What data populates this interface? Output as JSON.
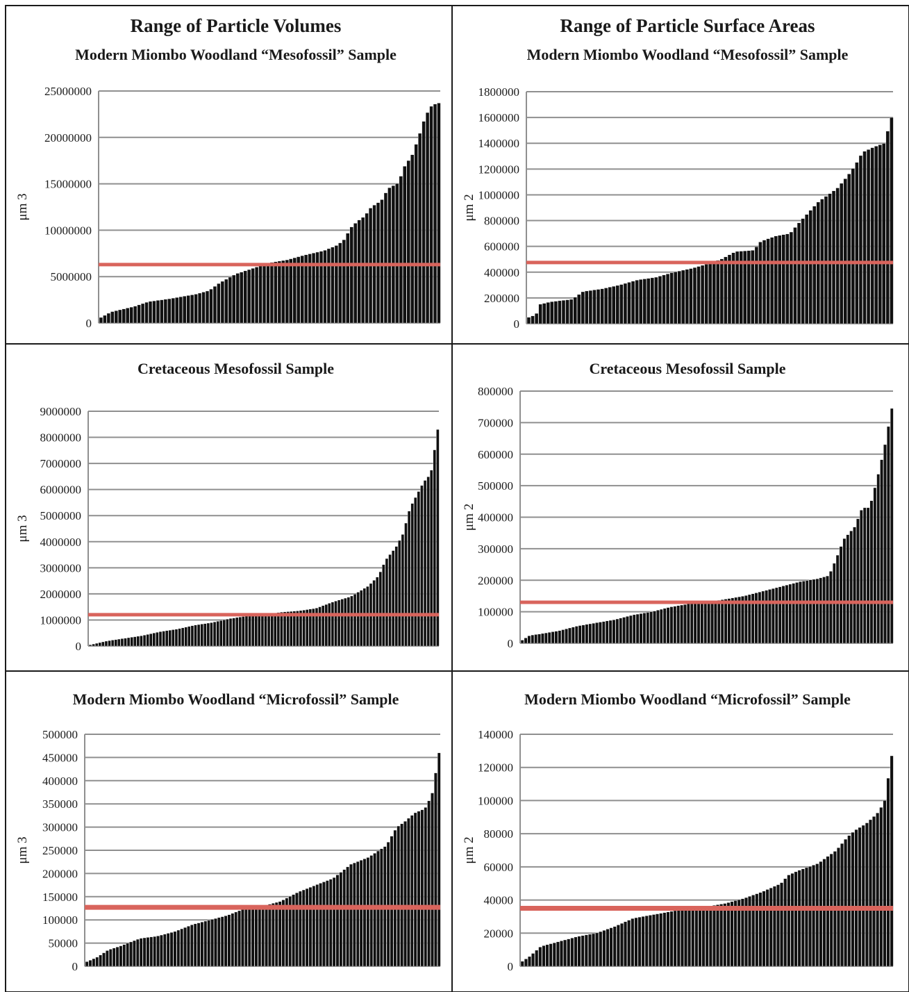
{
  "chart_data": [
    {
      "type": "bar",
      "title": "Range of Particle Volumes",
      "subtitle": "Modern Miombo Woodland “Mesofossil” Sample",
      "ylabel": "μm 3",
      "ylim": [
        0,
        25000000
      ],
      "yticks": [
        0,
        5000000,
        10000000,
        15000000,
        20000000,
        25000000
      ],
      "ytick_labels": [
        "0",
        "5000000",
        "10000000",
        "15000000",
        "20000000",
        "25000000"
      ],
      "n_bars": 90,
      "reference_line": 6300000,
      "reference_color": "#d9645c",
      "bar_color": "#111111",
      "grid": true,
      "keypoints": [
        [
          0,
          600000
        ],
        [
          0.03,
          1200000
        ],
        [
          0.1,
          1800000
        ],
        [
          0.14,
          2300000
        ],
        [
          0.2,
          2600000
        ],
        [
          0.28,
          3100000
        ],
        [
          0.32,
          3500000
        ],
        [
          0.35,
          4300000
        ],
        [
          0.4,
          5300000
        ],
        [
          0.45,
          5900000
        ],
        [
          0.5,
          6500000
        ],
        [
          0.55,
          6800000
        ],
        [
          0.6,
          7300000
        ],
        [
          0.66,
          7800000
        ],
        [
          0.7,
          8400000
        ],
        [
          0.72,
          9000000
        ],
        [
          0.74,
          10300000
        ],
        [
          0.76,
          11000000
        ],
        [
          0.78,
          11500000
        ],
        [
          0.8,
          12500000
        ],
        [
          0.83,
          13200000
        ],
        [
          0.85,
          14500000
        ],
        [
          0.88,
          15100000
        ],
        [
          0.9,
          17000000
        ],
        [
          0.92,
          18000000
        ],
        [
          0.94,
          20000000
        ],
        [
          0.96,
          22300000
        ],
        [
          0.98,
          23500000
        ],
        [
          1,
          23700000
        ]
      ]
    },
    {
      "type": "bar",
      "title": "Range of Particle Surface Areas",
      "subtitle": "Modern Miombo Woodland “Mesofossil” Sample",
      "ylabel": "μm 2",
      "ylim": [
        0,
        1800000
      ],
      "yticks": [
        0,
        200000,
        400000,
        600000,
        800000,
        1000000,
        1200000,
        1400000,
        1600000,
        1800000
      ],
      "ytick_labels": [
        "0",
        "200000",
        "400000",
        "600000",
        "800000",
        "1000000",
        "1200000",
        "1400000",
        "1600000",
        "1800000"
      ],
      "n_bars": 95,
      "reference_line": 475000,
      "reference_color": "#d9645c",
      "bar_color": "#111111",
      "grid": true,
      "keypoints": [
        [
          0,
          50000
        ],
        [
          0.02,
          70000
        ],
        [
          0.03,
          150000
        ],
        [
          0.06,
          170000
        ],
        [
          0.12,
          190000
        ],
        [
          0.15,
          250000
        ],
        [
          0.2,
          270000
        ],
        [
          0.25,
          300000
        ],
        [
          0.3,
          340000
        ],
        [
          0.35,
          360000
        ],
        [
          0.4,
          400000
        ],
        [
          0.45,
          430000
        ],
        [
          0.5,
          470000
        ],
        [
          0.53,
          500000
        ],
        [
          0.57,
          560000
        ],
        [
          0.62,
          570000
        ],
        [
          0.64,
          640000
        ],
        [
          0.68,
          680000
        ],
        [
          0.72,
          700000
        ],
        [
          0.75,
          800000
        ],
        [
          0.8,
          950000
        ],
        [
          0.85,
          1050000
        ],
        [
          0.88,
          1150000
        ],
        [
          0.9,
          1230000
        ],
        [
          0.92,
          1330000
        ],
        [
          0.95,
          1370000
        ],
        [
          0.98,
          1400000
        ],
        [
          1,
          1600000
        ]
      ]
    },
    {
      "type": "bar",
      "title": "",
      "subtitle": "Cretaceous Mesofossil Sample",
      "ylabel": "μm 3",
      "ylim": [
        0,
        9000000
      ],
      "yticks": [
        0,
        1000000,
        2000000,
        3000000,
        4000000,
        5000000,
        6000000,
        7000000,
        8000000,
        9000000
      ],
      "ytick_labels": [
        "0",
        "1000000",
        "2000000",
        "3000000",
        "4000000",
        "5000000",
        "6000000",
        "7000000",
        "8000000",
        "9000000"
      ],
      "n_bars": 110,
      "reference_line": 1200000,
      "reference_color": "#d9645c",
      "bar_color": "#111111",
      "grid": true,
      "keypoints": [
        [
          0,
          50000
        ],
        [
          0.05,
          200000
        ],
        [
          0.1,
          300000
        ],
        [
          0.15,
          400000
        ],
        [
          0.2,
          550000
        ],
        [
          0.25,
          650000
        ],
        [
          0.3,
          800000
        ],
        [
          0.35,
          900000
        ],
        [
          0.4,
          1050000
        ],
        [
          0.45,
          1150000
        ],
        [
          0.5,
          1200000
        ],
        [
          0.55,
          1300000
        ],
        [
          0.6,
          1350000
        ],
        [
          0.65,
          1450000
        ],
        [
          0.7,
          1700000
        ],
        [
          0.75,
          1900000
        ],
        [
          0.8,
          2300000
        ],
        [
          0.83,
          2700000
        ],
        [
          0.85,
          3300000
        ],
        [
          0.88,
          3800000
        ],
        [
          0.9,
          4300000
        ],
        [
          0.92,
          5300000
        ],
        [
          0.94,
          5800000
        ],
        [
          0.96,
          6300000
        ],
        [
          0.98,
          6600000
        ],
        [
          1,
          8300000
        ]
      ]
    },
    {
      "type": "bar",
      "title": "",
      "subtitle": "Cretaceous Mesofossil Sample",
      "ylabel": "μm 2",
      "ylim": [
        0,
        800000
      ],
      "yticks": [
        0,
        100000,
        200000,
        300000,
        400000,
        500000,
        600000,
        700000,
        800000
      ],
      "ytick_labels": [
        "0",
        "100000",
        "200000",
        "300000",
        "400000",
        "500000",
        "600000",
        "700000",
        "800000"
      ],
      "n_bars": 110,
      "reference_line": 130000,
      "reference_color": "#d9645c",
      "bar_color": "#111111",
      "grid": true,
      "keypoints": [
        [
          0,
          10000
        ],
        [
          0.02,
          25000
        ],
        [
          0.05,
          30000
        ],
        [
          0.1,
          40000
        ],
        [
          0.15,
          55000
        ],
        [
          0.2,
          65000
        ],
        [
          0.25,
          75000
        ],
        [
          0.3,
          90000
        ],
        [
          0.35,
          100000
        ],
        [
          0.4,
          115000
        ],
        [
          0.45,
          125000
        ],
        [
          0.5,
          130000
        ],
        [
          0.55,
          140000
        ],
        [
          0.6,
          150000
        ],
        [
          0.65,
          165000
        ],
        [
          0.7,
          180000
        ],
        [
          0.75,
          195000
        ],
        [
          0.8,
          205000
        ],
        [
          0.83,
          215000
        ],
        [
          0.85,
          270000
        ],
        [
          0.87,
          330000
        ],
        [
          0.9,
          370000
        ],
        [
          0.92,
          430000
        ],
        [
          0.94,
          430000
        ],
        [
          0.96,
          520000
        ],
        [
          0.98,
          620000
        ],
        [
          1,
          745000
        ]
      ]
    },
    {
      "type": "bar",
      "title": "",
      "subtitle": "Modern Miombo Woodland “Microfossil” Sample",
      "ylabel": "μm 3",
      "ylim": [
        0,
        500000
      ],
      "yticks": [
        0,
        50000,
        100000,
        150000,
        200000,
        250000,
        300000,
        350000,
        400000,
        450000,
        500000
      ],
      "ytick_labels": [
        "0",
        "50000",
        "100000",
        "150000",
        "200000",
        "250000",
        "300000",
        "350000",
        "400000",
        "450000",
        "500000"
      ],
      "n_bars": 105,
      "reference_line": 127000,
      "reference_color": "#d9645c",
      "bar_color": "#111111",
      "grid": true,
      "keypoints": [
        [
          0,
          10000
        ],
        [
          0.03,
          20000
        ],
        [
          0.06,
          35000
        ],
        [
          0.1,
          45000
        ],
        [
          0.15,
          60000
        ],
        [
          0.2,
          65000
        ],
        [
          0.25,
          75000
        ],
        [
          0.3,
          90000
        ],
        [
          0.35,
          100000
        ],
        [
          0.4,
          110000
        ],
        [
          0.45,
          125000
        ],
        [
          0.5,
          130000
        ],
        [
          0.55,
          140000
        ],
        [
          0.6,
          160000
        ],
        [
          0.65,
          175000
        ],
        [
          0.7,
          190000
        ],
        [
          0.75,
          220000
        ],
        [
          0.8,
          235000
        ],
        [
          0.85,
          260000
        ],
        [
          0.88,
          300000
        ],
        [
          0.9,
          310000
        ],
        [
          0.93,
          330000
        ],
        [
          0.96,
          340000
        ],
        [
          0.98,
          370000
        ],
        [
          1,
          460000
        ]
      ]
    },
    {
      "type": "bar",
      "title": "",
      "subtitle": "Modern Miombo Woodland “Microfossil” Sample",
      "ylabel": "μm 2",
      "ylim": [
        0,
        140000
      ],
      "yticks": [
        0,
        20000,
        40000,
        60000,
        80000,
        100000,
        120000,
        140000
      ],
      "ytick_labels": [
        "0",
        "20000",
        "40000",
        "60000",
        "80000",
        "100000",
        "120000",
        "140000"
      ],
      "n_bars": 105,
      "reference_line": 35000,
      "reference_color": "#d9645c",
      "bar_color": "#111111",
      "grid": true,
      "keypoints": [
        [
          0,
          3000
        ],
        [
          0.02,
          6000
        ],
        [
          0.05,
          12000
        ],
        [
          0.1,
          15000
        ],
        [
          0.15,
          18000
        ],
        [
          0.2,
          20000
        ],
        [
          0.25,
          24000
        ],
        [
          0.3,
          29000
        ],
        [
          0.35,
          31000
        ],
        [
          0.4,
          33000
        ],
        [
          0.45,
          35000
        ],
        [
          0.5,
          36000
        ],
        [
          0.55,
          38000
        ],
        [
          0.6,
          41000
        ],
        [
          0.65,
          45000
        ],
        [
          0.7,
          50000
        ],
        [
          0.72,
          55000
        ],
        [
          0.75,
          58000
        ],
        [
          0.8,
          62000
        ],
        [
          0.85,
          70000
        ],
        [
          0.88,
          78000
        ],
        [
          0.9,
          82000
        ],
        [
          0.93,
          86000
        ],
        [
          0.96,
          92000
        ],
        [
          0.98,
          99000
        ],
        [
          1,
          127000
        ]
      ]
    }
  ]
}
